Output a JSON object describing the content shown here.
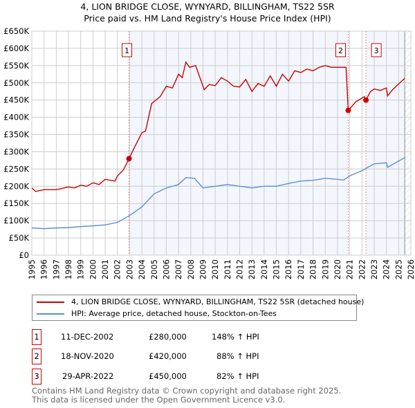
{
  "title": "4, LION BRIDGE CLOSE, WYNYARD, BILLINGHAM, TS22 5SR",
  "subtitle": "Price paid vs. HM Land Registry's House Price Index (HPI)",
  "chart_data": {
    "type": "line",
    "ylim": [
      0,
      650000
    ],
    "xlim": [
      1995,
      2026
    ],
    "yticks": [
      0,
      50000,
      100000,
      150000,
      200000,
      250000,
      300000,
      350000,
      400000,
      450000,
      500000,
      550000,
      600000,
      650000
    ],
    "ytick_labels": [
      "£0",
      "£50K",
      "£100K",
      "£150K",
      "£200K",
      "£250K",
      "£300K",
      "£350K",
      "£400K",
      "£450K",
      "£500K",
      "£550K",
      "£600K",
      "£650K"
    ],
    "xticks": [
      1995,
      1996,
      1997,
      1998,
      1999,
      2000,
      2001,
      2002,
      2003,
      2004,
      2005,
      2006,
      2007,
      2008,
      2009,
      2010,
      2011,
      2012,
      2013,
      2014,
      2015,
      2016,
      2017,
      2018,
      2019,
      2020,
      2021,
      2022,
      2023,
      2024,
      2025,
      2026
    ],
    "series": [
      {
        "name": "4, LION BRIDGE CLOSE, WYNYARD, BILLINGHAM, TS22 5SR (detached house)",
        "color": "#cc0000",
        "x": [
          1995,
          1995.3,
          1996,
          1997,
          1998,
          1998.5,
          1999,
          1999.5,
          2000,
          2000.5,
          2001,
          2001.8,
          2002,
          2002.5,
          2002.95,
          2003.5,
          2004,
          2004.3,
          2004.8,
          2005.5,
          2006,
          2006.5,
          2007,
          2007.3,
          2007.6,
          2007.9,
          2008.4,
          2008.8,
          2009.1,
          2009.5,
          2010,
          2010.5,
          2011,
          2011.5,
          2012,
          2012.5,
          2013,
          2013.5,
          2014,
          2014.5,
          2015,
          2015.5,
          2016,
          2016.5,
          2017,
          2017.5,
          2018,
          2018.5,
          2019,
          2019.5,
          2020,
          2020.7,
          2020.88,
          2021.5,
          2022.2,
          2022.33,
          2022.7,
          2023,
          2023.5,
          2024,
          2024.1,
          2024.5,
          2025.5
        ],
        "y": [
          195000,
          185000,
          190000,
          190000,
          198000,
          195000,
          203000,
          200000,
          210000,
          205000,
          220000,
          215000,
          230000,
          248000,
          280000,
          320000,
          355000,
          360000,
          440000,
          460000,
          490000,
          485000,
          525000,
          515000,
          560000,
          545000,
          550000,
          510000,
          480000,
          495000,
          492000,
          515000,
          505000,
          490000,
          488000,
          510000,
          475000,
          498000,
          490000,
          520000,
          490000,
          525000,
          505000,
          535000,
          530000,
          540000,
          535000,
          545000,
          550000,
          545000,
          545000,
          545000,
          420000,
          445000,
          460000,
          450000,
          475000,
          482000,
          478000,
          485000,
          462000,
          480000,
          513000
        ]
      },
      {
        "name": "HPI: Average price, detached house, Stockton-on-Tees",
        "color": "#5b8fd4",
        "x": [
          1995,
          1996,
          1997,
          1998,
          1999,
          2000,
          2001,
          2002,
          2003,
          2004,
          2005,
          2006,
          2007,
          2007.6,
          2008.3,
          2009,
          2010,
          2011,
          2012,
          2013,
          2014,
          2015,
          2016,
          2017,
          2018,
          2019,
          2020,
          2020.5,
          2021,
          2022,
          2022.5,
          2023,
          2024,
          2024.1,
          2025.5
        ],
        "y": [
          79000,
          77000,
          79000,
          80000,
          83000,
          85000,
          88000,
          95000,
          115000,
          140000,
          178000,
          195000,
          205000,
          225000,
          223000,
          195000,
          200000,
          205000,
          200000,
          195000,
          200000,
          200000,
          208000,
          215000,
          217000,
          223000,
          220000,
          218000,
          230000,
          245000,
          255000,
          265000,
          268000,
          255000,
          283000
        ]
      }
    ],
    "sales": [
      {
        "label": "1",
        "x": 2002.95,
        "y": 280000
      },
      {
        "label": "2",
        "x": 2020.88,
        "y": 420000
      },
      {
        "label": "3",
        "x": 2022.33,
        "y": 450000
      }
    ]
  },
  "legend": [
    "4, LION BRIDGE CLOSE, WYNYARD, BILLINGHAM, TS22 5SR (detached house)",
    "HPI: Average price, detached house, Stockton-on-Tees"
  ],
  "sales_table": [
    {
      "num": "1",
      "date": "11-DEC-2002",
      "price": "£280,000",
      "hpi": "148% ↑ HPI"
    },
    {
      "num": "2",
      "date": "18-NOV-2020",
      "price": "£420,000",
      "hpi": "88% ↑ HPI"
    },
    {
      "num": "3",
      "date": "29-APR-2022",
      "price": "£450,000",
      "hpi": "82% ↑ HPI"
    }
  ],
  "footer": [
    "Contains HM Land Registry data © Crown copyright and database right 2025.",
    "This data is licensed under the Open Government Licence v3.0."
  ]
}
